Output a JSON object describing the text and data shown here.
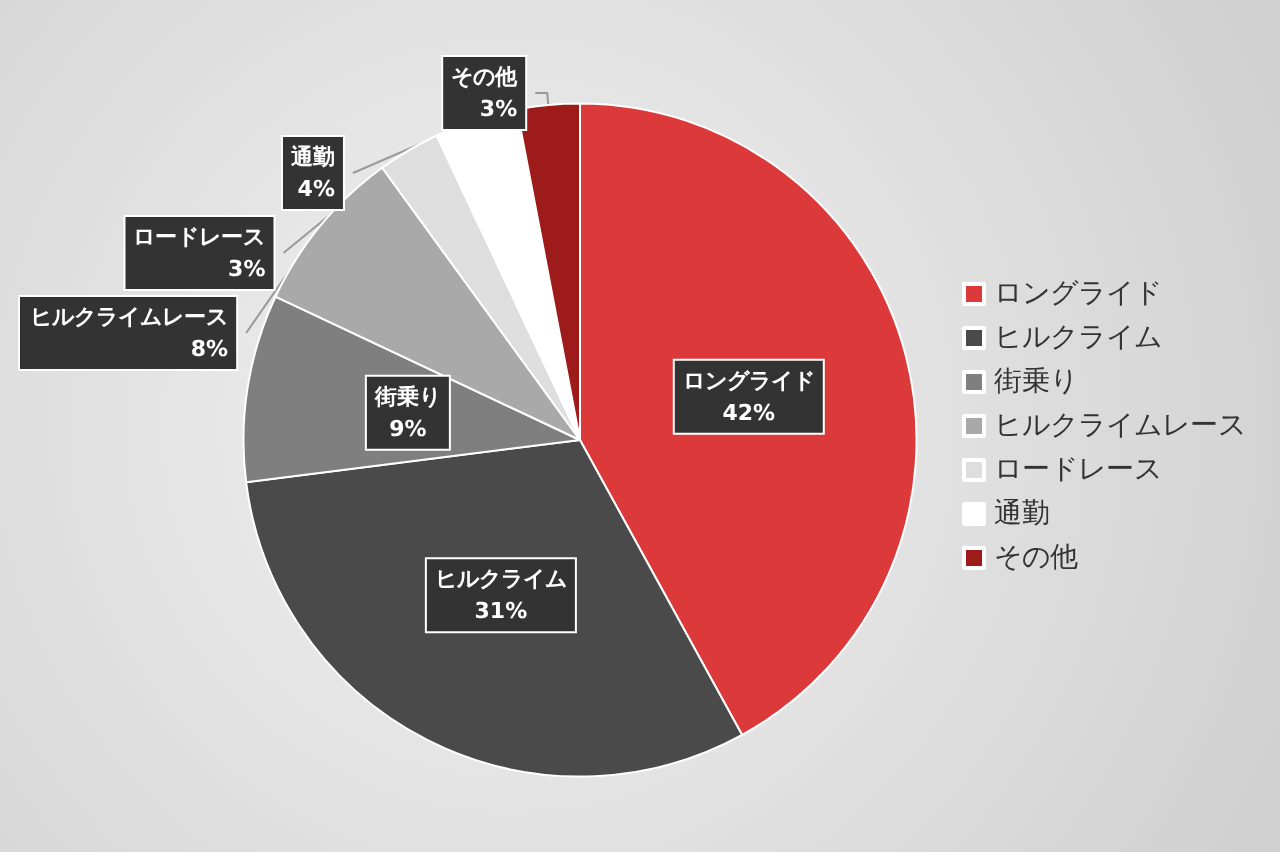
{
  "chart_data": {
    "type": "pie",
    "categories": [
      "ロングライド",
      "ヒルクライム",
      "街乗り",
      "ヒルクライムレース",
      "ロードレース",
      "通勤",
      "その他"
    ],
    "values": [
      42,
      31,
      9,
      8,
      3,
      4,
      3
    ],
    "colors": [
      "#dc3a3a",
      "#4a4a4a",
      "#7f7f7f",
      "#a9a9a9",
      "#dedede",
      "#ffffff",
      "#9e1b1b"
    ],
    "value_labels": [
      "42%",
      "31%",
      "9%",
      "8%",
      "3%",
      "4%",
      "3%"
    ],
    "legend": "right"
  }
}
